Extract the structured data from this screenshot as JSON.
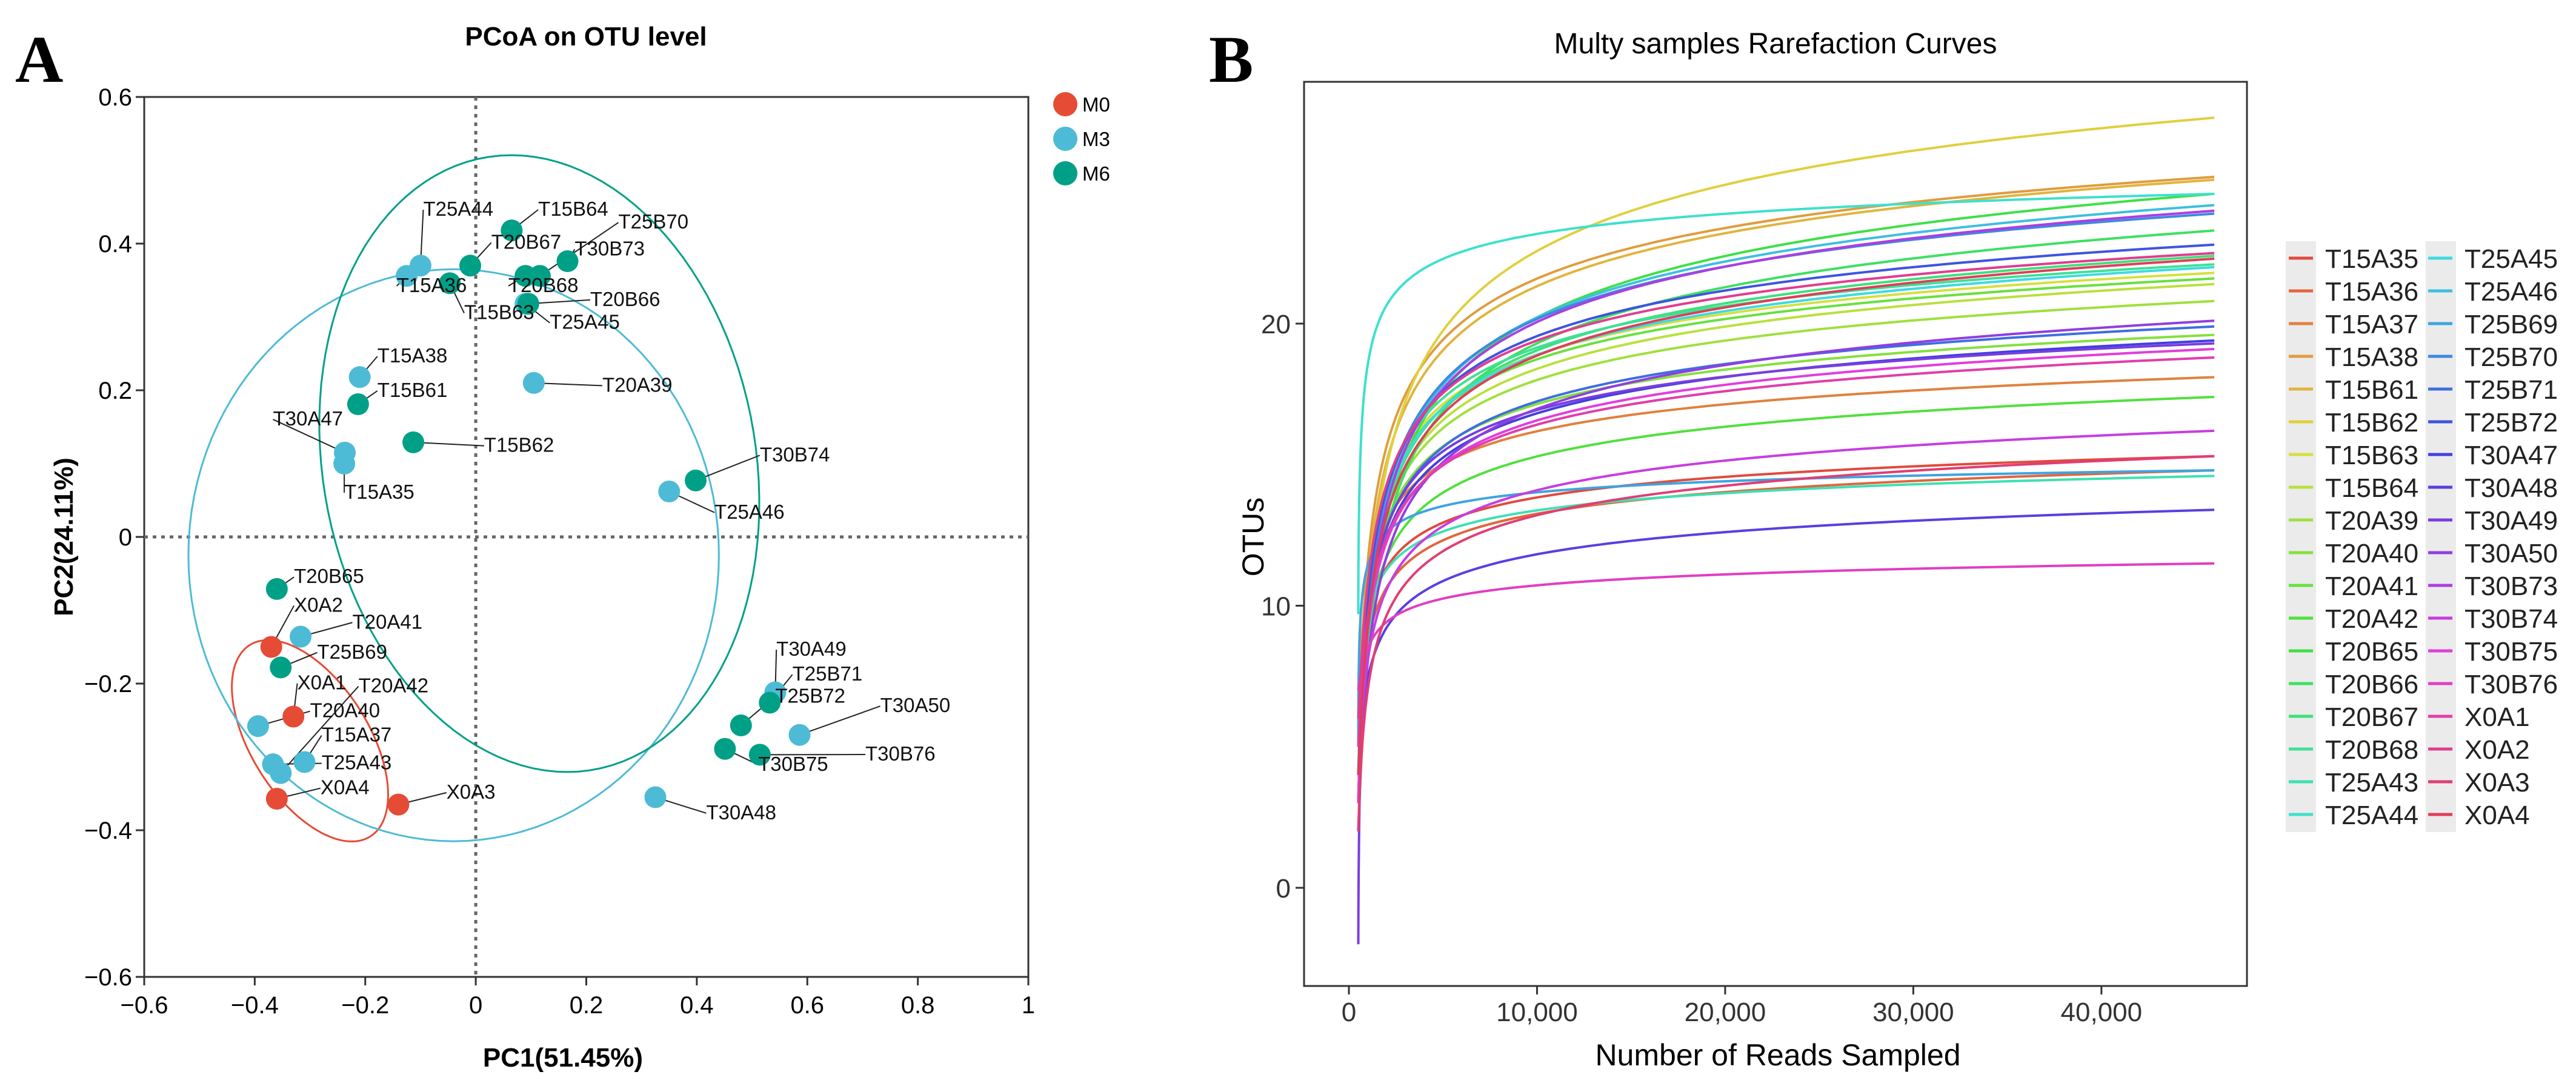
{
  "chart_data": [
    {
      "panel": "A",
      "type": "scatter",
      "title": "PCoA on OTU level",
      "xlabel": "PC1(51.45%)",
      "ylabel": "PC2(24.11%)",
      "xlim": [
        -0.6,
        1
      ],
      "ylim": [
        -0.6,
        0.6
      ],
      "xticks": [
        -0.6,
        -0.4,
        -0.2,
        0,
        0.2,
        0.4,
        0.6,
        0.8,
        1
      ],
      "yticks": [
        -0.6,
        -0.4,
        -0.2,
        0,
        0.2,
        0.4,
        0.6
      ],
      "xtick_labels": [
        "−0.6",
        "−0.4",
        "−0.2",
        "0",
        "0.2",
        "0.4",
        "0.6",
        "0.8",
        "1"
      ],
      "ytick_labels": [
        "−0.6",
        "−0.4",
        "−0.2",
        "0",
        "0.2",
        "0.4",
        "0.6"
      ],
      "reference_lines": {
        "x": 0,
        "y": 0,
        "style": "dotted"
      },
      "legend": {
        "placement": "top-right outside"
      },
      "groups": [
        {
          "name": "M0",
          "color": "#E64B35"
        },
        {
          "name": "M3",
          "color": "#4DBBD5"
        },
        {
          "name": "M6",
          "color": "#00A087"
        }
      ],
      "ellipses": [
        {
          "group": "M0",
          "center": [
            -0.3,
            -0.278
          ],
          "axis_u": [
            -0.1,
            0.134
          ],
          "axis_v": [
            0.1,
            0.03
          ]
        },
        {
          "group": "M3",
          "center": [
            -0.04,
            -0.025
          ],
          "axis_u": [
            0.48,
            0
          ],
          "axis_v": [
            0,
            0.39
          ]
        },
        {
          "group": "M6",
          "center": [
            0.115,
            0.1
          ],
          "axis_u": [
            -0.17,
            0.4
          ],
          "axis_v": [
            0.36,
            0.13
          ]
        }
      ],
      "points": [
        {
          "label": "X0A2",
          "group": "M0",
          "x": -0.37,
          "y": -0.15,
          "lx": -0.329,
          "ly": -0.102
        },
        {
          "label": "X0A1",
          "group": "M0",
          "x": -0.33,
          "y": -0.245,
          "lx": -0.323,
          "ly": -0.208
        },
        {
          "label": "X0A4",
          "group": "M0",
          "x": -0.36,
          "y": -0.357,
          "lx": -0.281,
          "ly": -0.351
        },
        {
          "label": "X0A3",
          "group": "M0",
          "x": -0.14,
          "y": -0.365,
          "lx": -0.053,
          "ly": -0.357
        },
        {
          "label": "T25A44",
          "group": "M3",
          "x": -0.1,
          "y": 0.37,
          "lx": -0.095,
          "ly": 0.438
        },
        {
          "label": "T15A36",
          "group": "M3",
          "x": -0.125,
          "y": 0.356,
          "lx": -0.143,
          "ly": 0.334
        },
        {
          "label": "T25A45",
          "group": "M3",
          "x": 0.09,
          "y": 0.318,
          "lx": 0.123,
          "ly": 0.287
        },
        {
          "label": "T15A38",
          "group": "M3",
          "x": -0.21,
          "y": 0.218,
          "lx": -0.178,
          "ly": 0.238
        },
        {
          "label": "T20A39",
          "group": "M3",
          "x": 0.105,
          "y": 0.21,
          "lx": 0.229,
          "ly": 0.198
        },
        {
          "label": "T30A47",
          "group": "M3",
          "x": -0.237,
          "y": 0.115,
          "lx": -0.367,
          "ly": 0.152
        },
        {
          "label": "T15A35",
          "group": "M3",
          "x": -0.238,
          "y": 0.1,
          "lx": -0.238,
          "ly": 0.052
        },
        {
          "label": "T25A46",
          "group": "M3",
          "x": 0.35,
          "y": 0.062,
          "lx": 0.432,
          "ly": 0.025
        },
        {
          "label": "T20A41",
          "group": "M3",
          "x": -0.317,
          "y": -0.136,
          "lx": -0.254,
          "ly": -0.125
        },
        {
          "label": "T20A40",
          "group": "M3",
          "x": -0.394,
          "y": -0.258,
          "lx": -0.3,
          "ly": -0.246
        },
        {
          "label": "T15A37",
          "group": "M3",
          "x": -0.31,
          "y": -0.307,
          "lx": -0.279,
          "ly": -0.279
        },
        {
          "label": "T25A43",
          "group": "M3",
          "x": -0.367,
          "y": -0.31,
          "lx": -0.279,
          "ly": -0.317
        },
        {
          "label": "T20A42",
          "group": "M3",
          "x": -0.353,
          "y": -0.322,
          "lx": -0.232,
          "ly": -0.212
        },
        {
          "label": "T30A48",
          "group": "M3",
          "x": 0.325,
          "y": -0.355,
          "lx": 0.417,
          "ly": -0.385
        },
        {
          "label": "T30A49",
          "group": "M3",
          "x": 0.542,
          "y": -0.212,
          "lx": 0.544,
          "ly": -0.162
        },
        {
          "label": "T30A50",
          "group": "M3",
          "x": 0.586,
          "y": -0.27,
          "lx": 0.732,
          "ly": -0.239
        },
        {
          "label": "T15B64",
          "group": "M6",
          "x": 0.065,
          "y": 0.418,
          "lx": 0.113,
          "ly": 0.438
        },
        {
          "label": "T20B67",
          "group": "M6",
          "x": -0.01,
          "y": 0.37,
          "lx": 0.028,
          "ly": 0.393
        },
        {
          "label": "T20B68",
          "group": "M6",
          "x": 0.09,
          "y": 0.356,
          "lx": 0.059,
          "ly": 0.334
        },
        {
          "label": "T25B70",
          "group": "M6",
          "x": 0.116,
          "y": 0.356,
          "lx": 0.223,
          "ly": 0.399
        },
        {
          "label": "T30B73",
          "group": "M6",
          "x": 0.166,
          "y": 0.376,
          "lx": 0.179,
          "ly": 0.384
        },
        {
          "label": "T15B63",
          "group": "M6",
          "x": -0.047,
          "y": 0.346,
          "lx": -0.021,
          "ly": 0.297
        },
        {
          "label": "T20B66",
          "group": "M6",
          "x": 0.095,
          "y": 0.318,
          "lx": 0.207,
          "ly": 0.315
        },
        {
          "label": "T15B61",
          "group": "M6",
          "x": -0.213,
          "y": 0.181,
          "lx": -0.178,
          "ly": 0.191
        },
        {
          "label": "T15B62",
          "group": "M6",
          "x": -0.113,
          "y": 0.129,
          "lx": 0.015,
          "ly": 0.116
        },
        {
          "label": "T30B74",
          "group": "M6",
          "x": 0.398,
          "y": 0.077,
          "lx": 0.514,
          "ly": 0.103
        },
        {
          "label": "T20B65",
          "group": "M6",
          "x": -0.36,
          "y": -0.071,
          "lx": -0.329,
          "ly": -0.063
        },
        {
          "label": "T25B69",
          "group": "M6",
          "x": -0.353,
          "y": -0.178,
          "lx": -0.287,
          "ly": -0.166
        },
        {
          "label": "T25B71",
          "group": "M6",
          "x": 0.532,
          "y": -0.226,
          "lx": 0.573,
          "ly": -0.196
        },
        {
          "label": "T25B72",
          "group": "M6",
          "x": 0.48,
          "y": -0.257,
          "lx": 0.542,
          "ly": -0.226
        },
        {
          "label": "T30B75",
          "group": "M6",
          "x": 0.451,
          "y": -0.289,
          "lx": 0.511,
          "ly": -0.319
        },
        {
          "label": "T30B76",
          "group": "M6",
          "x": 0.514,
          "y": -0.297,
          "lx": 0.705,
          "ly": -0.305
        }
      ]
    },
    {
      "panel": "B",
      "type": "line",
      "title": "Multy samples Rarefaction Curves",
      "xlabel": "Number of Reads Sampled",
      "ylabel": "OTUs",
      "xlim": [
        -2400,
        47800
      ],
      "ylim": [
        -3.5,
        28.6
      ],
      "xticks": [
        0,
        10000,
        20000,
        30000,
        40000
      ],
      "xtick_labels": [
        "0",
        "10,000",
        "20,000",
        "30,000",
        "40,000"
      ],
      "yticks": [
        0,
        10,
        20
      ],
      "ytick_labels": [
        "0",
        "10",
        "20"
      ],
      "x_range_sampled": [
        500,
        46000
      ],
      "palette": "hue",
      "legend": {
        "placement": "right",
        "columns": 2
      },
      "series": [
        {
          "name": "T15A35",
          "start": 6,
          "end": 15.3,
          "shape": 1
        },
        {
          "name": "T15A36",
          "start": 5,
          "end": 14.8,
          "shape": 1
        },
        {
          "name": "T15A37",
          "start": 7,
          "end": 18.1,
          "shape": 1.1
        },
        {
          "name": "T15A38",
          "start": 6,
          "end": 25.2,
          "shape": 1.2
        },
        {
          "name": "T15B61",
          "start": 5,
          "end": 25.1,
          "shape": 1.2
        },
        {
          "name": "T15B62",
          "start": 4,
          "end": 27.3,
          "shape": 1.3
        },
        {
          "name": "T15B63",
          "start": 5,
          "end": 21.8,
          "shape": 1.1
        },
        {
          "name": "T15B64",
          "start": 4,
          "end": 21.4,
          "shape": 1.1
        },
        {
          "name": "T20A39",
          "start": 3,
          "end": 20.8,
          "shape": 1
        },
        {
          "name": "T20A40",
          "start": 4,
          "end": 19.6,
          "shape": 1
        },
        {
          "name": "T20A41",
          "start": 5,
          "end": 21.6,
          "shape": 1.1
        },
        {
          "name": "T20A42",
          "start": 4,
          "end": 17.4,
          "shape": 1
        },
        {
          "name": "T20B65",
          "start": 3,
          "end": 24.6,
          "shape": 1.3
        },
        {
          "name": "T20B66",
          "start": 2,
          "end": 23.3,
          "shape": 1.2
        },
        {
          "name": "T20B67",
          "start": 3,
          "end": 22.4,
          "shape": 1.1
        },
        {
          "name": "T20B68",
          "start": 5,
          "end": 22.1,
          "shape": 1.1
        },
        {
          "name": "T25A43",
          "start": 6,
          "end": 14.6,
          "shape": 0.9
        },
        {
          "name": "T25A44",
          "start": 9.7,
          "end": 24.6,
          "shape": 0.6
        },
        {
          "name": "T25A45",
          "start": 4,
          "end": 22.0,
          "shape": 1.1
        },
        {
          "name": "T25A46",
          "start": 3,
          "end": 24.2,
          "shape": 1.2
        },
        {
          "name": "T25B69",
          "start": 5,
          "end": 14.8,
          "shape": 0.5
        },
        {
          "name": "T25B70",
          "start": 4,
          "end": 23.9,
          "shape": 1.2
        },
        {
          "name": "T25B71",
          "start": 3,
          "end": 19.9,
          "shape": 1
        },
        {
          "name": "T25B72",
          "start": 4,
          "end": 22.8,
          "shape": 1.1
        },
        {
          "name": "T30A47",
          "start": 3,
          "end": 19.4,
          "shape": 1
        },
        {
          "name": "T30A48",
          "start": 5,
          "end": 13.4,
          "shape": 1.2
        },
        {
          "name": "T30A49",
          "start": -2,
          "end": 19.3,
          "shape": 0.7
        },
        {
          "name": "T30A50",
          "start": 2,
          "end": 20.1,
          "shape": 1.1
        },
        {
          "name": "T30B73",
          "start": 3,
          "end": 24.0,
          "shape": 1.2
        },
        {
          "name": "T30B74",
          "start": 4,
          "end": 16.2,
          "shape": 1.1
        },
        {
          "name": "T30B75",
          "start": 3,
          "end": 19.1,
          "shape": 1
        },
        {
          "name": "T30B76",
          "start": 7,
          "end": 11.5,
          "shape": 1.1
        },
        {
          "name": "X0A1",
          "start": 5,
          "end": 18.8,
          "shape": 1.1
        },
        {
          "name": "X0A2",
          "start": 6,
          "end": 22.5,
          "shape": 1.2
        },
        {
          "name": "X0A3",
          "start": 2,
          "end": 15.3,
          "shape": 1
        },
        {
          "name": "X0A4",
          "start": 4,
          "end": 22.3,
          "shape": 1.2
        }
      ]
    }
  ],
  "panel_labels": {
    "a": "A",
    "b": "B"
  }
}
